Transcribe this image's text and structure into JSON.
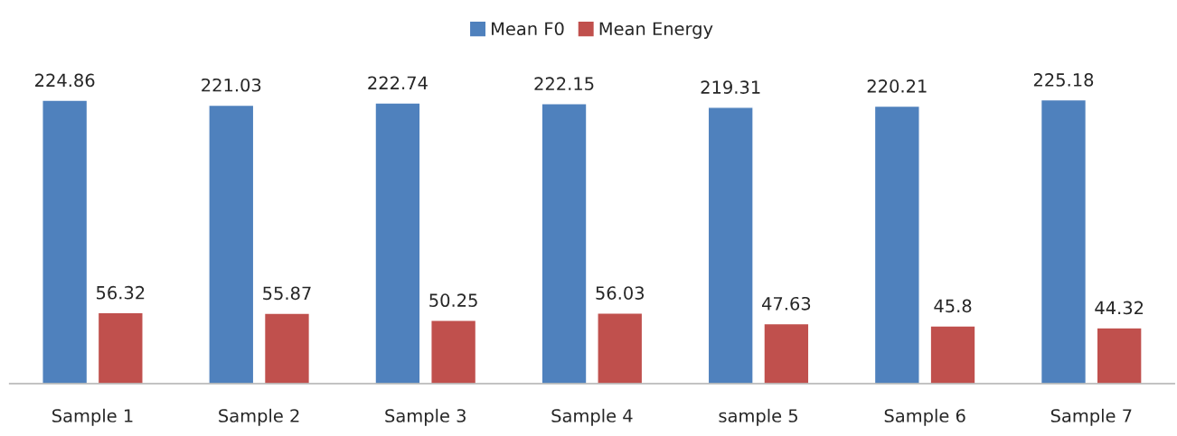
{
  "chart_data": {
    "type": "bar",
    "categories": [
      "Sample 1",
      "Sample 2",
      "Sample 3",
      "Sample 4",
      "sample 5",
      "Sample 6",
      "Sample 7"
    ],
    "series": [
      {
        "name": "Mean F0",
        "color": "#4f81bd",
        "values": [
          224.86,
          221.03,
          222.74,
          222.15,
          219.31,
          220.21,
          225.18
        ]
      },
      {
        "name": "Mean Energy",
        "color": "#c0504d",
        "values": [
          56.32,
          55.87,
          50.25,
          56.03,
          47.63,
          45.8,
          44.32
        ]
      }
    ],
    "data_labels": true,
    "legend": "top",
    "grid": false
  }
}
